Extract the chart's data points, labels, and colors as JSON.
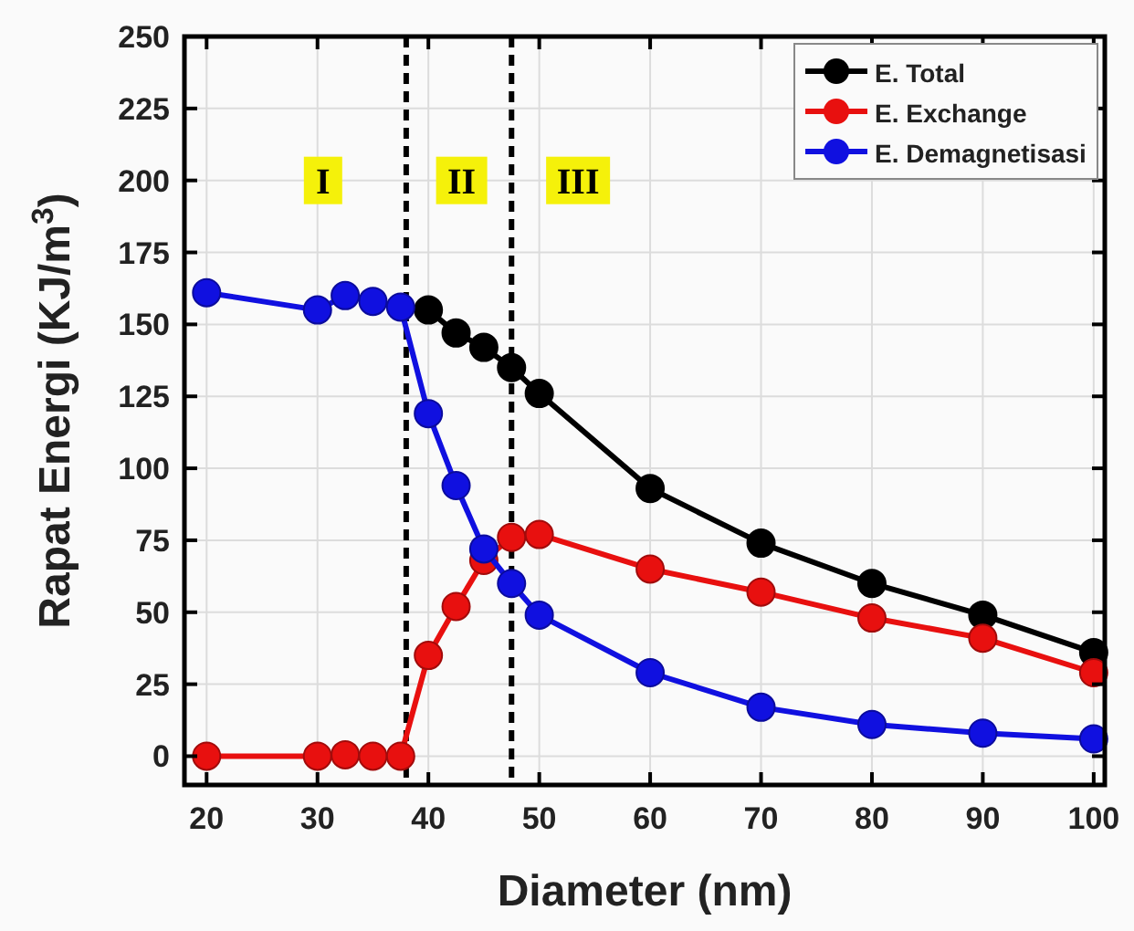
{
  "chart_data": {
    "type": "line",
    "xlabel": "Diameter (nm)",
    "ylabel": "Rapat Energi (KJ/m$^{3}$)",
    "xlim": [
      18,
      101
    ],
    "ylim": [
      -10,
      250
    ],
    "xticks": [
      20,
      30,
      40,
      50,
      60,
      70,
      80,
      90,
      100
    ],
    "yticks": [
      0,
      25,
      50,
      75,
      100,
      125,
      150,
      175,
      200,
      225,
      250
    ],
    "grid": true,
    "legend": "top right",
    "marker": "circle",
    "line_style": "solid",
    "series": [
      {
        "name": "E. Total",
        "color": "#000000",
        "x": [
          40,
          42.5,
          45,
          47.5,
          50,
          60,
          70,
          80,
          90,
          100
        ],
        "values": [
          155,
          147,
          142,
          135,
          126,
          93,
          74,
          60,
          49,
          36
        ]
      },
      {
        "name": "E. Exchange",
        "color": "#e8100f",
        "x": [
          20,
          30,
          32.5,
          35,
          37.5,
          40,
          42.5,
          45,
          47.5,
          50,
          60,
          70,
          80,
          90,
          100
        ],
        "values": [
          0,
          0,
          0.5,
          0,
          0,
          35,
          52,
          68,
          76,
          77,
          65,
          57,
          48,
          41,
          29
        ]
      },
      {
        "name": "E. Demagnetisasi",
        "color": "#1010e0",
        "x": [
          20,
          30,
          32.5,
          35,
          37.5,
          40,
          42.5,
          45,
          47.5,
          50,
          60,
          70,
          80,
          90,
          100
        ],
        "values": [
          161,
          155,
          160,
          158,
          156,
          119,
          94,
          72,
          60,
          49,
          29,
          17,
          11,
          8,
          6
        ]
      }
    ],
    "ref_lines": [
      {
        "axis": "x",
        "value": 38,
        "color": "#000000",
        "line_style": "dashed"
      },
      {
        "axis": "x",
        "value": 47.5,
        "color": "#000000",
        "line_style": "dashed"
      }
    ],
    "annotations": [
      {
        "text": "I",
        "x": 30.5,
        "y": 200
      },
      {
        "text": "II",
        "x": 43,
        "y": 200
      },
      {
        "text": "III",
        "x": 53.5,
        "y": 200
      }
    ]
  }
}
